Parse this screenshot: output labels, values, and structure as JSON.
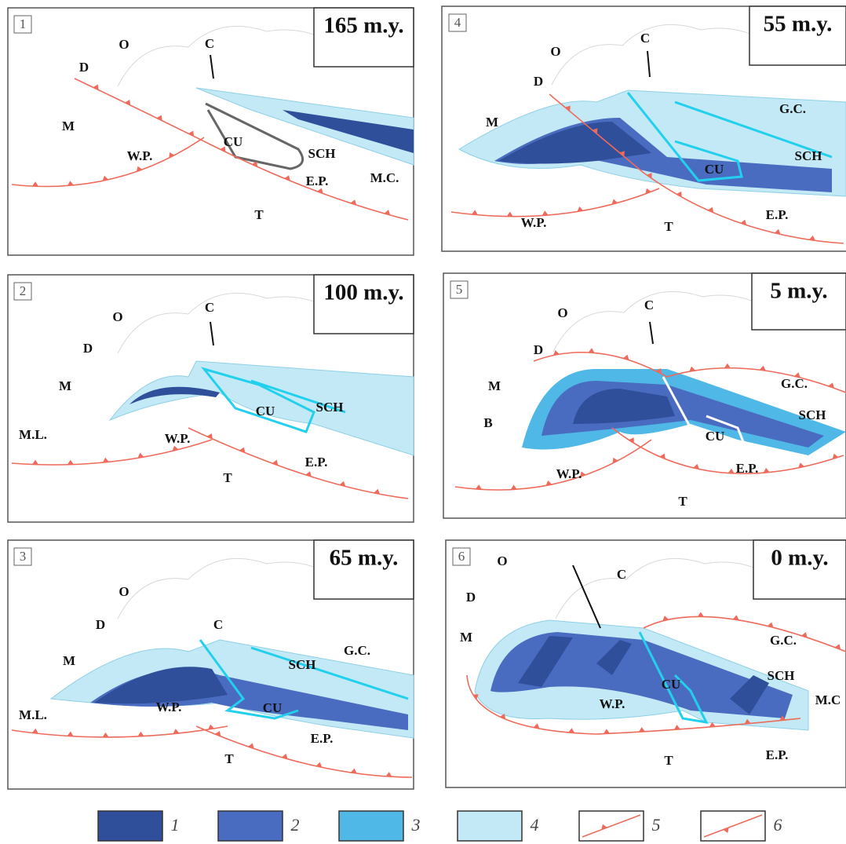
{
  "panels": [
    {
      "number": "1",
      "age": "165 m.y.",
      "labels": [
        "O",
        "C",
        "D",
        "M",
        "W.P.",
        "CU",
        "SCH",
        "M.C.",
        "E.P.",
        "T"
      ]
    },
    {
      "number": "2",
      "age": "100 m.y.",
      "labels": [
        "O",
        "C",
        "D",
        "M",
        "SCH",
        "CU",
        "M.L.",
        "W.P.",
        "E.P.",
        "T"
      ]
    },
    {
      "number": "3",
      "age": "65 m.y.",
      "labels": [
        "O",
        "C",
        "D",
        "M",
        "SCH",
        "G.C.",
        "CU",
        "M.L.",
        "W.P.",
        "E.P.",
        "T"
      ]
    },
    {
      "number": "4",
      "age": "55 m.y.",
      "labels": [
        "O",
        "C",
        "D",
        "M",
        "G.C.",
        "SCH",
        "CU",
        "W.P.",
        "T",
        "E.P."
      ]
    },
    {
      "number": "5",
      "age": "5 m.y.",
      "labels": [
        "O",
        "C",
        "D",
        "M",
        "B",
        "G.C.",
        "SCH",
        "CU",
        "W.P.",
        "E.P.",
        "T"
      ]
    },
    {
      "number": "6",
      "age": "0 m.y.",
      "labels": [
        "O",
        "C",
        "D",
        "M",
        "G.C.",
        "SCH",
        "M.C",
        "CU",
        "W.P.",
        "E.P.",
        "T"
      ]
    }
  ],
  "legend": [
    "1",
    "2",
    "3",
    "4",
    "5",
    "6"
  ]
}
